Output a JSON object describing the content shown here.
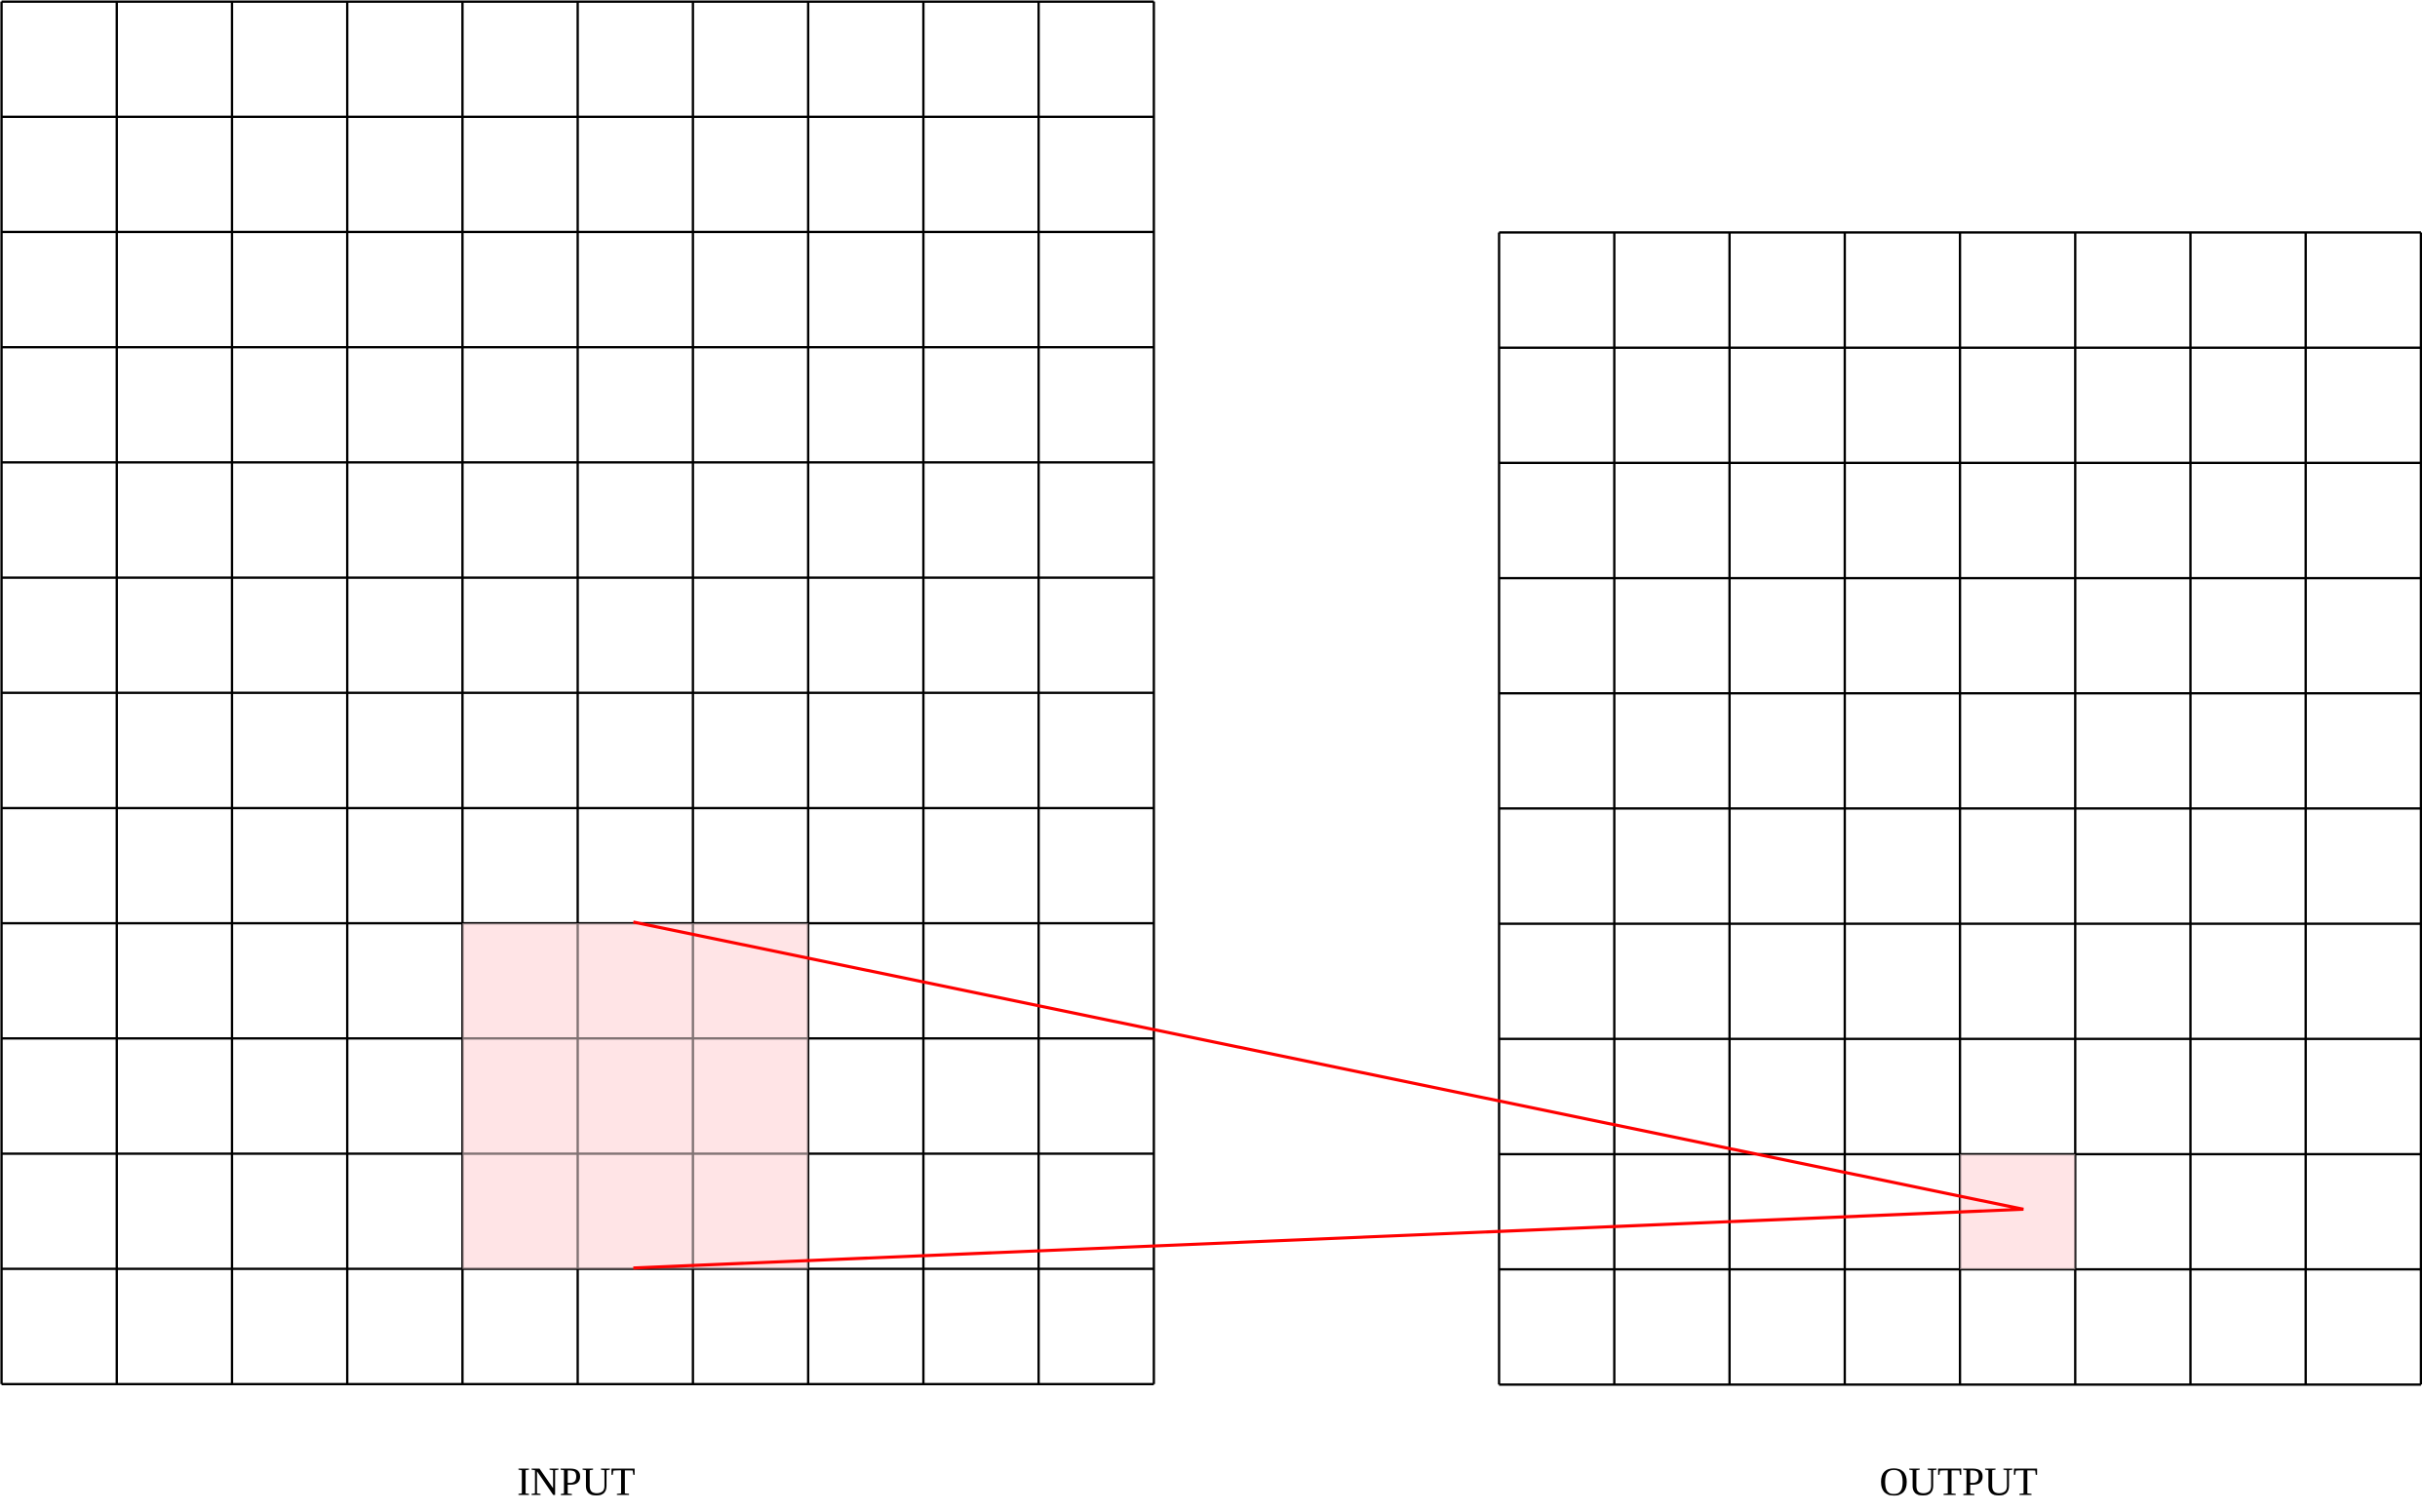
{
  "input": {
    "label": "INPUT"
  },
  "output": {
    "label": "OUTPUT"
  }
}
